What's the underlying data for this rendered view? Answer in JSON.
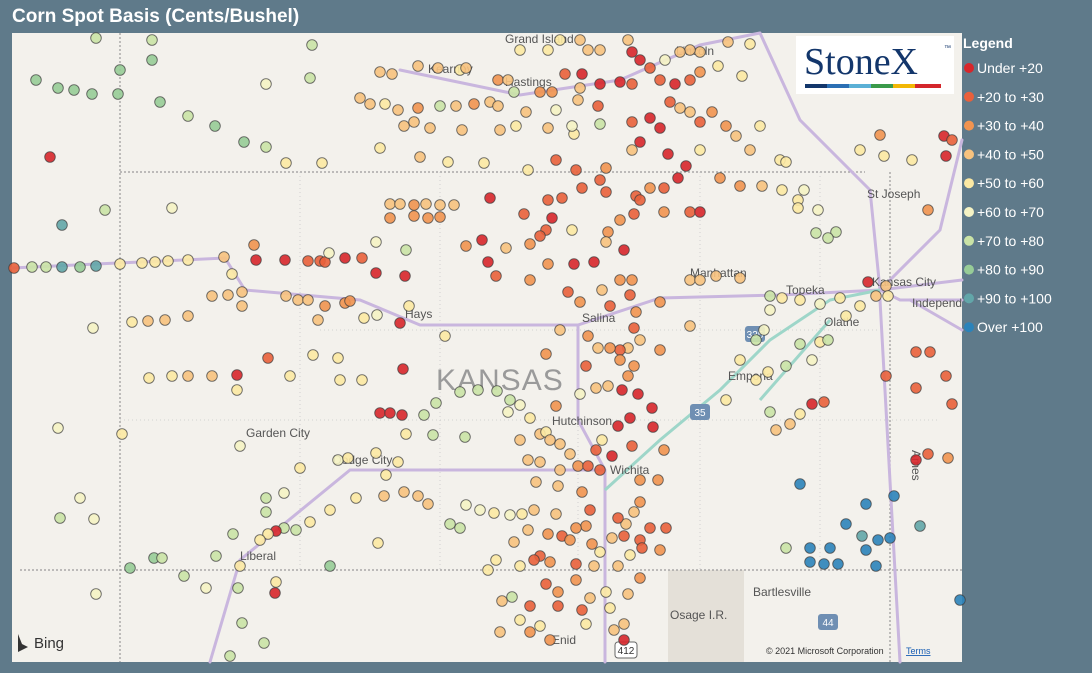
{
  "header": {
    "title": "Corn Spot Basis (Cents/Bushel)"
  },
  "legend": {
    "title": "Legend",
    "items": [
      {
        "label": "Under +20",
        "color": "#d7262b"
      },
      {
        "label": "+20 to +30",
        "color": "#e9603b"
      },
      {
        "label": "+30 to +40",
        "color": "#f19450"
      },
      {
        "label": "+40 to +50",
        "color": "#f7c27e"
      },
      {
        "label": "+50 to +60",
        "color": "#fce9a3"
      },
      {
        "label": "+60 to +70",
        "color": "#f5f3c4"
      },
      {
        "label": "+70 to +80",
        "color": "#cae3a6"
      },
      {
        "label": "+80 to +90",
        "color": "#97cc97"
      },
      {
        "label": "+90 to +100",
        "color": "#62a6a9"
      },
      {
        "label": "Over +100",
        "color": "#2b83ba"
      }
    ]
  },
  "logo": {
    "name": "StoneX",
    "mark": "™"
  },
  "map": {
    "state": "KANSAS",
    "cities": [
      "Grand Island",
      "Kearney",
      "Hastings",
      "Lincoln",
      "St Joseph",
      "Manhattan",
      "Topeka",
      "Kansas City",
      "Independ",
      "Olathe",
      "Hays",
      "Salina",
      "Emporia",
      "Hutchinson",
      "Garden City",
      "Dodge City",
      "Wichita",
      "Liberal",
      "Bartlesville",
      "Osage I.R.",
      "Enid",
      "Ames"
    ],
    "highways": [
      "335",
      "35",
      "44",
      "412"
    ],
    "provider": "Bing",
    "copyright": "© 2021 Microsoft Corporation",
    "terms": "Terms"
  }
}
